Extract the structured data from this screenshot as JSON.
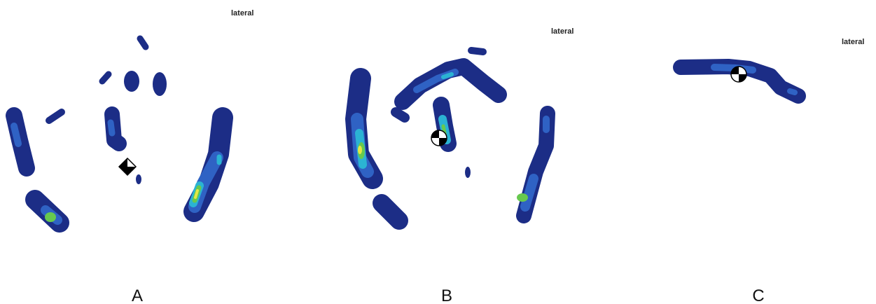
{
  "panels": [
    {
      "orientation": "lateral",
      "label": "A"
    },
    {
      "orientation": "lateral",
      "label": "B"
    },
    {
      "orientation": "lateral",
      "label": "C"
    }
  ]
}
